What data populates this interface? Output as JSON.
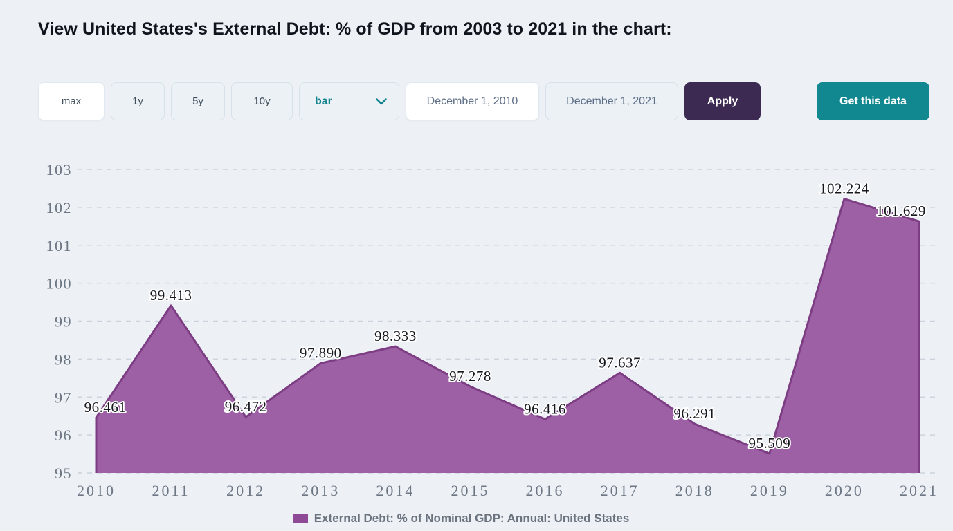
{
  "header": {
    "title": "View United States's External Debt: % of GDP from 2003 to 2021 in the chart:"
  },
  "toolbar": {
    "range_buttons": [
      {
        "label": "max",
        "active": true
      },
      {
        "label": "1y",
        "active": false
      },
      {
        "label": "5y",
        "active": false
      },
      {
        "label": "10y",
        "active": false
      }
    ],
    "chart_type_select": {
      "value": "bar"
    },
    "date_from": {
      "value": "December 1, 2010"
    },
    "date_to": {
      "value": "December 1, 2021"
    },
    "apply_label": "Apply",
    "get_data_label": "Get this data",
    "accent_purple": "#3d2a52",
    "accent_teal": "#11878f"
  },
  "chart_data": {
    "type": "area",
    "categories": [
      "2010",
      "2011",
      "2012",
      "2013",
      "2014",
      "2015",
      "2016",
      "2017",
      "2018",
      "2019",
      "2020",
      "2021"
    ],
    "values": [
      96.461,
      99.413,
      96.472,
      97.89,
      98.333,
      97.278,
      96.416,
      97.637,
      96.291,
      95.509,
      102.224,
      101.629
    ],
    "series_name": "External Debt: % of Nominal GDP: Annual: United States",
    "ylim": [
      95,
      103
    ],
    "yticks": [
      95,
      96,
      97,
      98,
      99,
      100,
      101,
      102,
      103
    ],
    "grid": "horizontal-dashed",
    "legend_position": "bottom-center",
    "data_labels": true,
    "data_label_decimals": 3,
    "fill_color": "#9d60a4",
    "line_color": "#7c3d83",
    "legend_swatch_color": "#8e4a96"
  }
}
